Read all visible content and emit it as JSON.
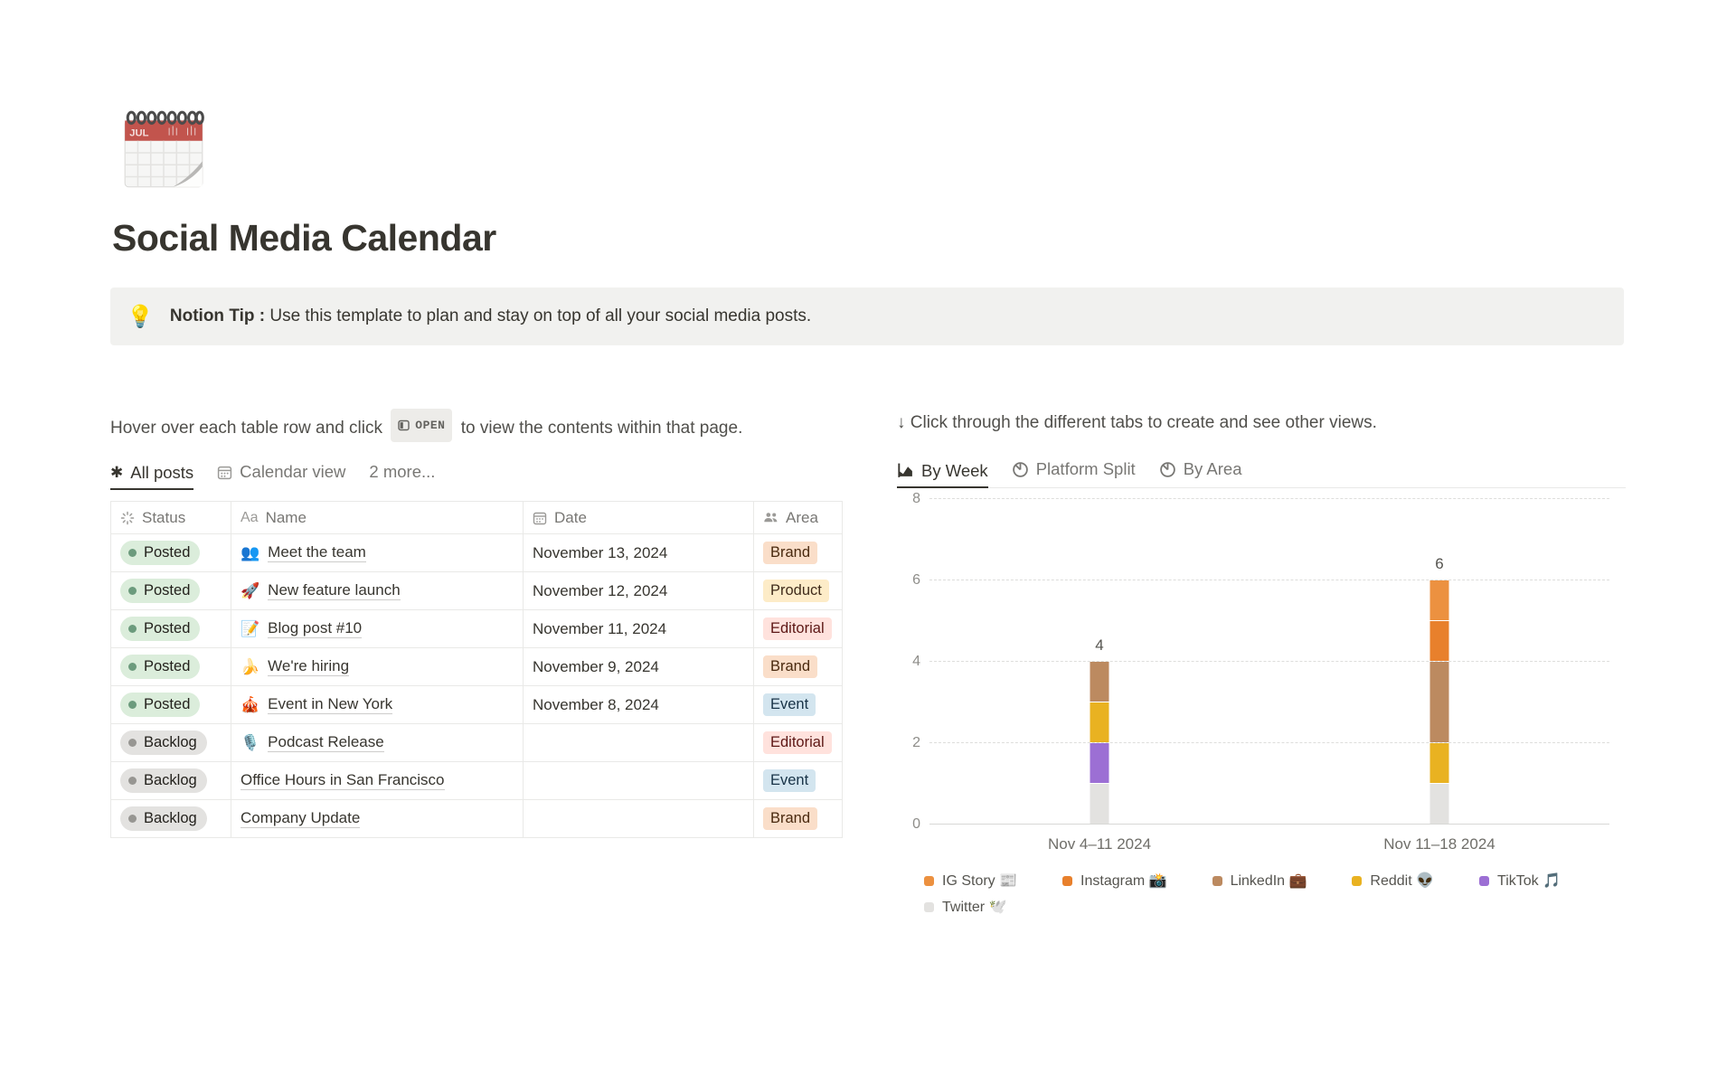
{
  "page": {
    "icon": "spiral-calendar-emoji",
    "icon_month": "JUL",
    "title": "Social Media Calendar"
  },
  "callout": {
    "emoji": "💡",
    "bold_text": "Notion Tip :",
    "text": " Use this template to plan and stay on top of all your social media posts."
  },
  "left": {
    "instruction_before": "Hover over each table row and click",
    "open_button_label": "OPEN",
    "instruction_after": "to view the contents within that page.",
    "tabs": [
      {
        "label": "All posts",
        "icon": "asterisk-icon",
        "active": true
      },
      {
        "label": "Calendar view",
        "icon": "calendar-icon",
        "active": false
      },
      {
        "label": "2 more...",
        "icon": "",
        "active": false
      }
    ],
    "table": {
      "columns": [
        {
          "label": "Status",
          "icon": "status-spinner-icon"
        },
        {
          "label": "Name",
          "icon": "Aa"
        },
        {
          "label": "Date",
          "icon": "calendar-icon"
        },
        {
          "label": "Area",
          "icon": "people-icon"
        }
      ],
      "rows": [
        {
          "status": "Posted",
          "status_color": "green",
          "emoji": "👥",
          "name": "Meet the team",
          "date": "November 13, 2024",
          "area": "Brand",
          "area_color": "orange"
        },
        {
          "status": "Posted",
          "status_color": "green",
          "emoji": "🚀",
          "name": "New feature launch",
          "date": "November 12, 2024",
          "area": "Product",
          "area_color": "yellow"
        },
        {
          "status": "Posted",
          "status_color": "green",
          "emoji": "📝",
          "name": "Blog post #10",
          "date": "November 11, 2024",
          "area": "Editorial",
          "area_color": "red"
        },
        {
          "status": "Posted",
          "status_color": "green",
          "emoji": "🍌",
          "name": "We're hiring",
          "date": "November 9, 2024",
          "area": "Brand",
          "area_color": "orange"
        },
        {
          "status": "Posted",
          "status_color": "green",
          "emoji": "🎪",
          "name": "Event in New York",
          "date": "November 8, 2024",
          "area": "Event",
          "area_color": "blue"
        },
        {
          "status": "Backlog",
          "status_color": "gray",
          "emoji": "🎙️",
          "name": "Podcast Release",
          "date": "",
          "area": "Editorial",
          "area_color": "red"
        },
        {
          "status": "Backlog",
          "status_color": "gray",
          "emoji": "",
          "name": "Office Hours in San Francisco",
          "date": "",
          "area": "Event",
          "area_color": "blue"
        },
        {
          "status": "Backlog",
          "status_color": "gray",
          "emoji": "",
          "name": "Company Update",
          "date": "",
          "area": "Brand",
          "area_color": "orange"
        }
      ]
    }
  },
  "right": {
    "instruction": "↓ Click through the different tabs to create and see other views.",
    "tabs": [
      {
        "label": "By Week",
        "icon": "bar-chart-icon",
        "active": true
      },
      {
        "label": "Platform Split",
        "icon": "pie-chart-icon",
        "active": false
      },
      {
        "label": "By Area",
        "icon": "pie-chart-icon",
        "active": false
      }
    ]
  },
  "chart_data": {
    "type": "bar",
    "stacked": true,
    "categories": [
      "Nov 4–11 2024",
      "Nov 11–18 2024"
    ],
    "series": [
      {
        "name": "Twitter",
        "emoji": "🕊️",
        "color": "#E3E2E0",
        "values": [
          1,
          1
        ]
      },
      {
        "name": "TikTok",
        "emoji": "🎵",
        "color": "#9C6FD4",
        "values": [
          1,
          0
        ]
      },
      {
        "name": "Reddit",
        "emoji": "👽",
        "color": "#E9B221",
        "values": [
          1,
          1
        ]
      },
      {
        "name": "LinkedIn",
        "emoji": "💼",
        "color": "#BC8A60",
        "values": [
          1,
          2
        ]
      },
      {
        "name": "Instagram",
        "emoji": "📸",
        "color": "#E8802C",
        "values": [
          0,
          1
        ]
      },
      {
        "name": "IG Story",
        "emoji": "📰",
        "color": "#EC9140",
        "values": [
          0,
          1
        ]
      }
    ],
    "totals": [
      4,
      6
    ],
    "title": "",
    "xlabel": "",
    "ylabel": "",
    "ylim": [
      0,
      8
    ],
    "yticks": [
      0,
      2,
      4,
      6,
      8
    ],
    "grid": "horizontal-dashed",
    "legend_position": "bottom",
    "legend_order": [
      "IG Story",
      "Instagram",
      "LinkedIn",
      "Reddit",
      "TikTok",
      "Twitter"
    ]
  }
}
